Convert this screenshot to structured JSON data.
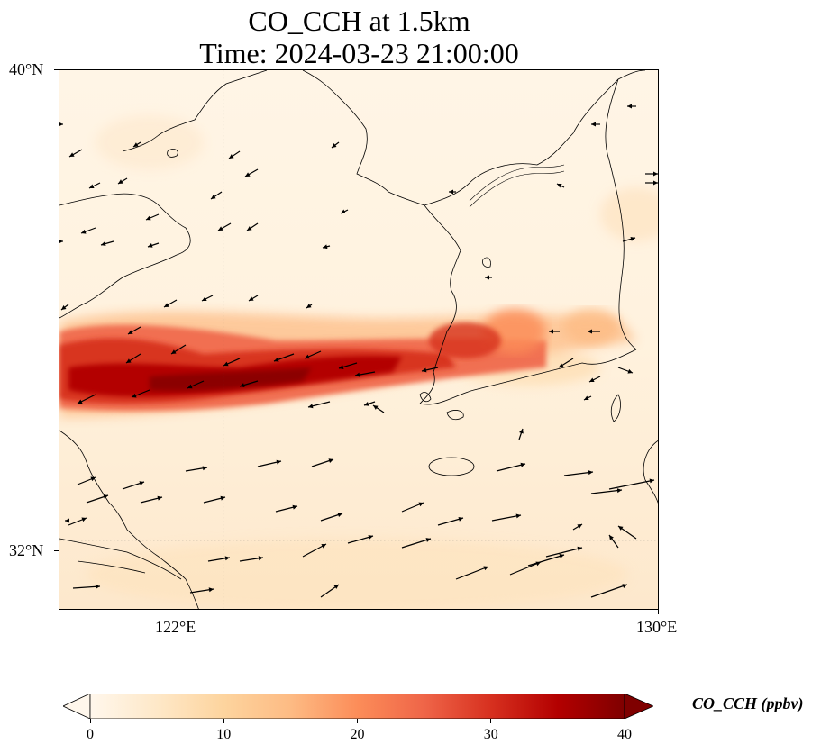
{
  "title": {
    "line1": "CO_CCH at 1.5km",
    "line2": "Time: 2024-03-23 21:00:00"
  },
  "map": {
    "lon_range": [
      119,
      130
    ],
    "lat_range": [
      30.8,
      40
    ],
    "gridlines": {
      "lon": [
        122
      ],
      "lat": [
        32
      ],
      "style": "dotted"
    },
    "lat_ticks": [
      {
        "value": 40,
        "label": "40°N"
      },
      {
        "value": 32,
        "label": "32°N"
      }
    ],
    "lon_ticks": [
      {
        "value": 122,
        "label": "122°E"
      },
      {
        "value": 130,
        "label": "130°E"
      }
    ],
    "field": "CO_CCH concentration",
    "plume": {
      "description_values_ppbv": {
        "background": 3,
        "edge": 15,
        "core": 38
      }
    },
    "wind_vectors_shown": true
  },
  "colorbar": {
    "label": "CO_CCH (ppbv)",
    "min": 0,
    "max": 40,
    "extend": "max",
    "colormap": "OrRd",
    "colors": [
      "#fff7ec",
      "#fee8c8",
      "#fdd49e",
      "#fdbb84",
      "#fc8d59",
      "#ef6548",
      "#d7301f",
      "#b30000",
      "#7f0000"
    ],
    "ticks": [
      {
        "value": 0,
        "label": "0"
      },
      {
        "value": 10,
        "label": "10"
      },
      {
        "value": 20,
        "label": "20"
      },
      {
        "value": 30,
        "label": "30"
      },
      {
        "value": 40,
        "label": "40"
      }
    ]
  }
}
